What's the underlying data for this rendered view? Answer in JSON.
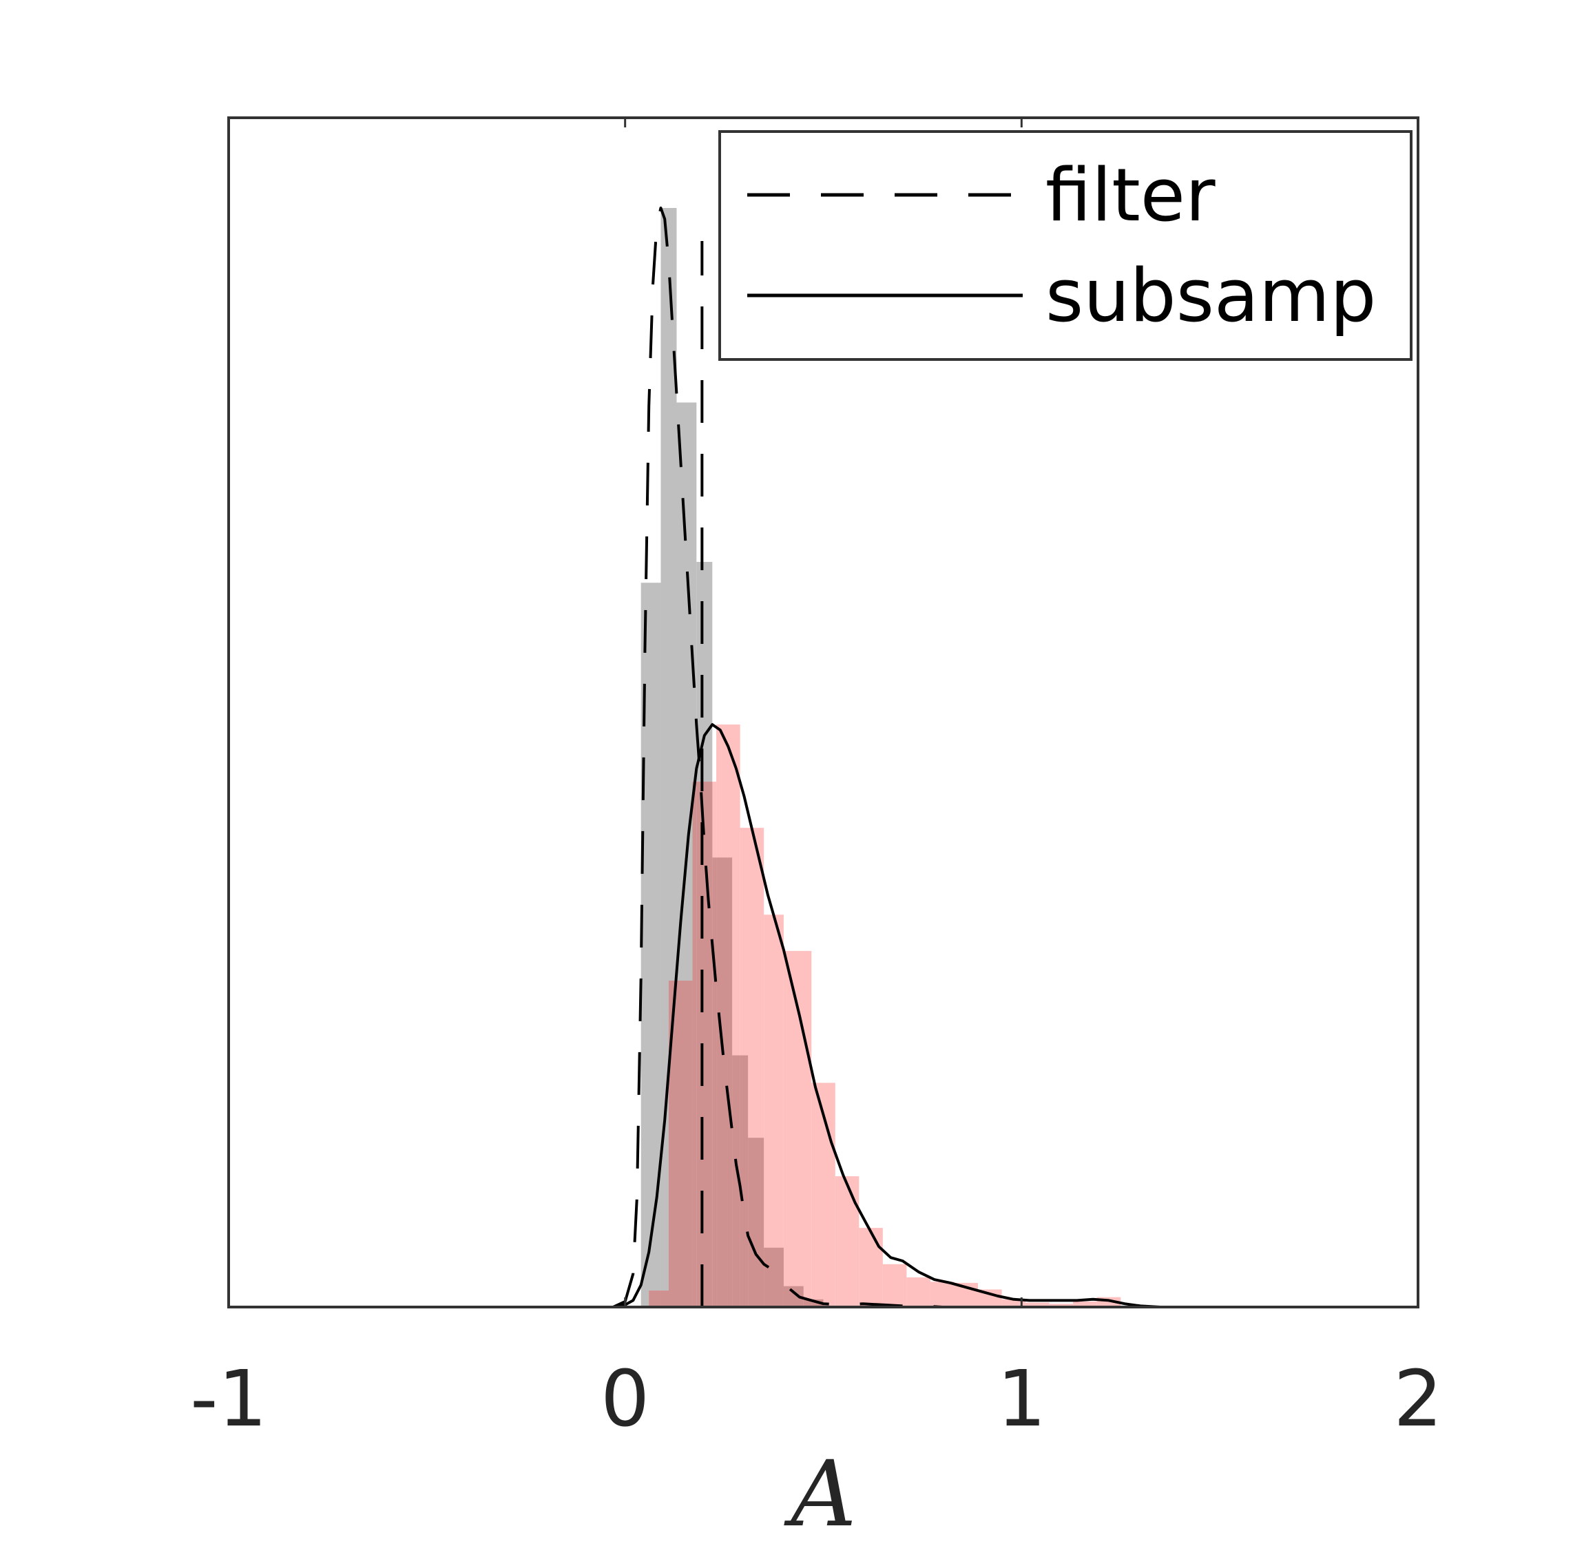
{
  "chart_data": {
    "type": "histogram",
    "title": "",
    "xlabel": "A",
    "ylabel": "",
    "xlim": [
      -1,
      2
    ],
    "ylim": [
      0,
      1.0
    ],
    "x_ticks": [
      {
        "value": -1,
        "label": "-1"
      },
      {
        "value": 0,
        "label": "0"
      },
      {
        "value": 1,
        "label": "1"
      },
      {
        "value": 2,
        "label": "2"
      }
    ],
    "grid": false,
    "legend": {
      "placement": "top-right",
      "entries": [
        {
          "label": "filter",
          "style": "dashed"
        },
        {
          "label": "subsamp",
          "style": "solid"
        }
      ]
    },
    "colors": {
      "filter_hist": "#bfbfbf",
      "subsamp_hist": "#ffc0c0",
      "overlap": "#cf9090",
      "line": "#000000",
      "axes": "#333333"
    },
    "reference_line_x": 0.194,
    "series": [
      {
        "name": "filter",
        "kind": "histogram",
        "bins": [
          {
            "x0": 0.04,
            "x1": 0.09,
            "value": 0.659
          },
          {
            "x0": 0.09,
            "x1": 0.13,
            "value": 1.0
          },
          {
            "x0": 0.13,
            "x1": 0.18,
            "value": 0.823
          },
          {
            "x0": 0.18,
            "x1": 0.22,
            "value": 0.678
          },
          {
            "x0": 0.22,
            "x1": 0.27,
            "value": 0.409
          },
          {
            "x0": 0.27,
            "x1": 0.31,
            "value": 0.229
          },
          {
            "x0": 0.31,
            "x1": 0.35,
            "value": 0.154
          },
          {
            "x0": 0.35,
            "x1": 0.4,
            "value": 0.054
          },
          {
            "x0": 0.4,
            "x1": 0.45,
            "value": 0.019
          },
          {
            "x0": 0.45,
            "x1": 0.5,
            "value": 0.007
          }
        ]
      },
      {
        "name": "subsamp",
        "kind": "histogram",
        "bins": [
          {
            "x0": 0.06,
            "x1": 0.11,
            "value": 0.015
          },
          {
            "x0": 0.11,
            "x1": 0.17,
            "value": 0.297
          },
          {
            "x0": 0.17,
            "x1": 0.23,
            "value": 0.478
          },
          {
            "x0": 0.23,
            "x1": 0.29,
            "value": 0.53
          },
          {
            "x0": 0.29,
            "x1": 0.35,
            "value": 0.436
          },
          {
            "x0": 0.35,
            "x1": 0.4,
            "value": 0.357
          },
          {
            "x0": 0.4,
            "x1": 0.47,
            "value": 0.324
          },
          {
            "x0": 0.47,
            "x1": 0.53,
            "value": 0.204
          },
          {
            "x0": 0.53,
            "x1": 0.59,
            "value": 0.119
          },
          {
            "x0": 0.59,
            "x1": 0.65,
            "value": 0.072
          },
          {
            "x0": 0.65,
            "x1": 0.71,
            "value": 0.039
          },
          {
            "x0": 0.71,
            "x1": 0.77,
            "value": 0.027
          },
          {
            "x0": 0.77,
            "x1": 0.83,
            "value": 0.023
          },
          {
            "x0": 0.83,
            "x1": 0.89,
            "value": 0.022
          },
          {
            "x0": 0.89,
            "x1": 0.95,
            "value": 0.016
          },
          {
            "x0": 0.95,
            "x1": 1.01,
            "value": 0.007
          },
          {
            "x0": 1.01,
            "x1": 1.07,
            "value": 0.004
          },
          {
            "x0": 1.07,
            "x1": 1.13,
            "value": 0.003
          },
          {
            "x0": 1.13,
            "x1": 1.19,
            "value": 0.005
          },
          {
            "x0": 1.19,
            "x1": 1.25,
            "value": 0.009
          }
        ]
      },
      {
        "name": "filter",
        "kind": "density",
        "style": "dashed",
        "x": [
          -0.03,
          0.0,
          0.02,
          0.03,
          0.04,
          0.05,
          0.06,
          0.07,
          0.08,
          0.09,
          0.1,
          0.11,
          0.12,
          0.13,
          0.14,
          0.15,
          0.16,
          0.17,
          0.18,
          0.19,
          0.2,
          0.21,
          0.22,
          0.23,
          0.24,
          0.25,
          0.26,
          0.27,
          0.28,
          0.29,
          0.3,
          0.31,
          0.33,
          0.35,
          0.38,
          0.41,
          0.44,
          0.47,
          0.5,
          0.55,
          0.6,
          0.65,
          0.7,
          0.75,
          0.8
        ],
        "y": [
          0.0,
          0.005,
          0.03,
          0.1,
          0.3,
          0.6,
          0.82,
          0.93,
          0.985,
          1.0,
          0.99,
          0.95,
          0.89,
          0.83,
          0.77,
          0.71,
          0.65,
          0.59,
          0.53,
          0.48,
          0.42,
          0.37,
          0.33,
          0.29,
          0.255,
          0.22,
          0.19,
          0.16,
          0.13,
          0.11,
          0.085,
          0.065,
          0.048,
          0.039,
          0.032,
          0.018,
          0.009,
          0.006,
          0.003,
          0.002,
          0.003,
          0.002,
          0.001,
          0.001,
          0.0
        ]
      },
      {
        "name": "subsamp",
        "kind": "density",
        "style": "solid",
        "x": [
          -0.03,
          0.0,
          0.02,
          0.04,
          0.06,
          0.08,
          0.1,
          0.12,
          0.14,
          0.16,
          0.18,
          0.2,
          0.22,
          0.24,
          0.26,
          0.28,
          0.3,
          0.33,
          0.36,
          0.4,
          0.44,
          0.48,
          0.52,
          0.55,
          0.58,
          0.61,
          0.64,
          0.67,
          0.7,
          0.74,
          0.78,
          0.82,
          0.86,
          0.9,
          0.94,
          0.98,
          1.02,
          1.06,
          1.1,
          1.14,
          1.18,
          1.22,
          1.26,
          1.3,
          1.35
        ],
        "y": [
          0.0,
          0.002,
          0.006,
          0.02,
          0.05,
          0.1,
          0.17,
          0.26,
          0.35,
          0.43,
          0.49,
          0.52,
          0.53,
          0.525,
          0.51,
          0.49,
          0.465,
          0.42,
          0.375,
          0.325,
          0.265,
          0.2,
          0.15,
          0.12,
          0.095,
          0.075,
          0.055,
          0.045,
          0.042,
          0.032,
          0.025,
          0.022,
          0.018,
          0.014,
          0.01,
          0.007,
          0.006,
          0.006,
          0.006,
          0.006,
          0.007,
          0.006,
          0.003,
          0.001,
          0.0
        ]
      }
    ]
  }
}
